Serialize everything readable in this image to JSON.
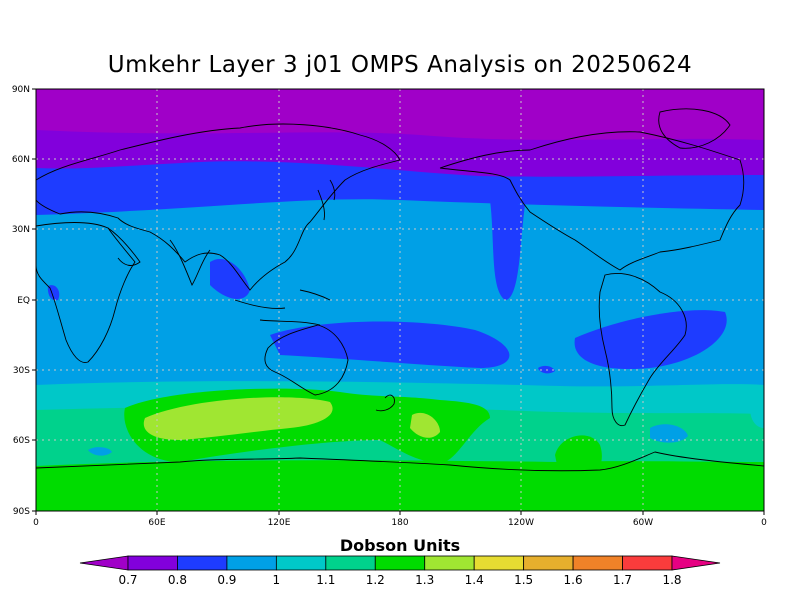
{
  "title": "Umkehr Layer 3 j01 OMPS Analysis on 20250624",
  "lat_ticks": [
    "90N",
    "60N",
    "30N",
    "EQ",
    "30S",
    "60S",
    "90S"
  ],
  "lon_ticks": [
    "0",
    "60E",
    "120E",
    "180",
    "120W",
    "60W",
    "0"
  ],
  "colorbar": {
    "title": "Dobson Units",
    "labels": [
      "0.7",
      "0.8",
      "0.9",
      "1",
      "1.1",
      "1.2",
      "1.3",
      "1.4",
      "1.5",
      "1.6",
      "1.7",
      "1.8"
    ],
    "colors": [
      "#a000c8",
      "#8200dc",
      "#1e3cff",
      "#00a0e6",
      "#00c8c8",
      "#00d28c",
      "#00dc00",
      "#a0e632",
      "#e6dc32",
      "#e6af2d",
      "#f08228",
      "#fa3c3c",
      "#e60082"
    ]
  }
}
